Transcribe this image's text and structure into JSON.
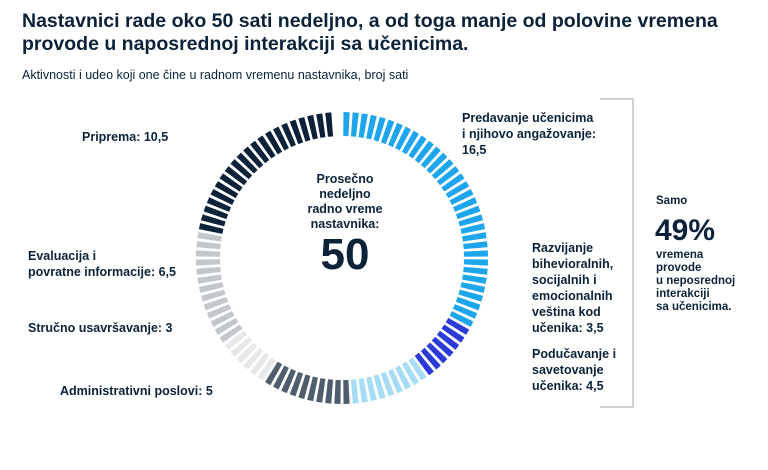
{
  "title": "Nastavnici rade oko 50 sati nedeljno, a od toga manje od polovine vremena provode u naposrednoj interakciji sa učenicima.",
  "subtitle": "Aktivnosti i udeo koji one čine u radnom vremenu nastavnika, broj sati",
  "center": {
    "caption": "Prosečno\nnedeljno\nradno vreme\nnastavnika:",
    "total": "50"
  },
  "side_note": {
    "prefix": "Samo",
    "percent": "49%",
    "text": "vremena\nprovode\nu neposrednoj\ninterakciji\nsa učenicima."
  },
  "labels": {
    "predavanje": "Predavanje učenicima\ni njihovo angažovanje:\n16,5",
    "razvijanje": "Razvijanje\nbihevioralnih,\nsocijalnih i\nemocionalnih\nveština kod\nučenika:  3,5",
    "poducavanje": "Podučavanje i\nsavetovanje\nučenika: 4,5",
    "administrativni": "Administrativni poslovi: 5",
    "strucno": "Stručno usavršavanje: 3",
    "evaluacija": "Evaluacija i\npovratne informacije: 6,5",
    "priprema": "Priprema: 10,5"
  },
  "chart_data": {
    "type": "pie",
    "style": "segmented donut",
    "total": 50,
    "unit": "sati",
    "slices": [
      {
        "label": "Predavanje učenicima i njihovo angažovanje",
        "value": 16.5,
        "color": "#1ea6ec"
      },
      {
        "label": "Razvijanje bihevioralnih, socijalnih i emocionalnih veština kod učenika",
        "value": 3.5,
        "color": "#2a3bd6"
      },
      {
        "label": "Podučavanje i savetovanje učenika",
        "value": 4.5,
        "color": "#a6dcf6"
      },
      {
        "label": "Administrativni poslovi",
        "value": 5,
        "color": "#4f5d6c"
      },
      {
        "label": "Stručno usavršavanje",
        "value": 3,
        "color": "#e6e8ea"
      },
      {
        "label": "Evaluacija i povratne informacije",
        "value": 6.5,
        "color": "#c3c7cc"
      },
      {
        "label": "Priprema",
        "value": 10.5,
        "color": "#0b2239"
      }
    ]
  }
}
